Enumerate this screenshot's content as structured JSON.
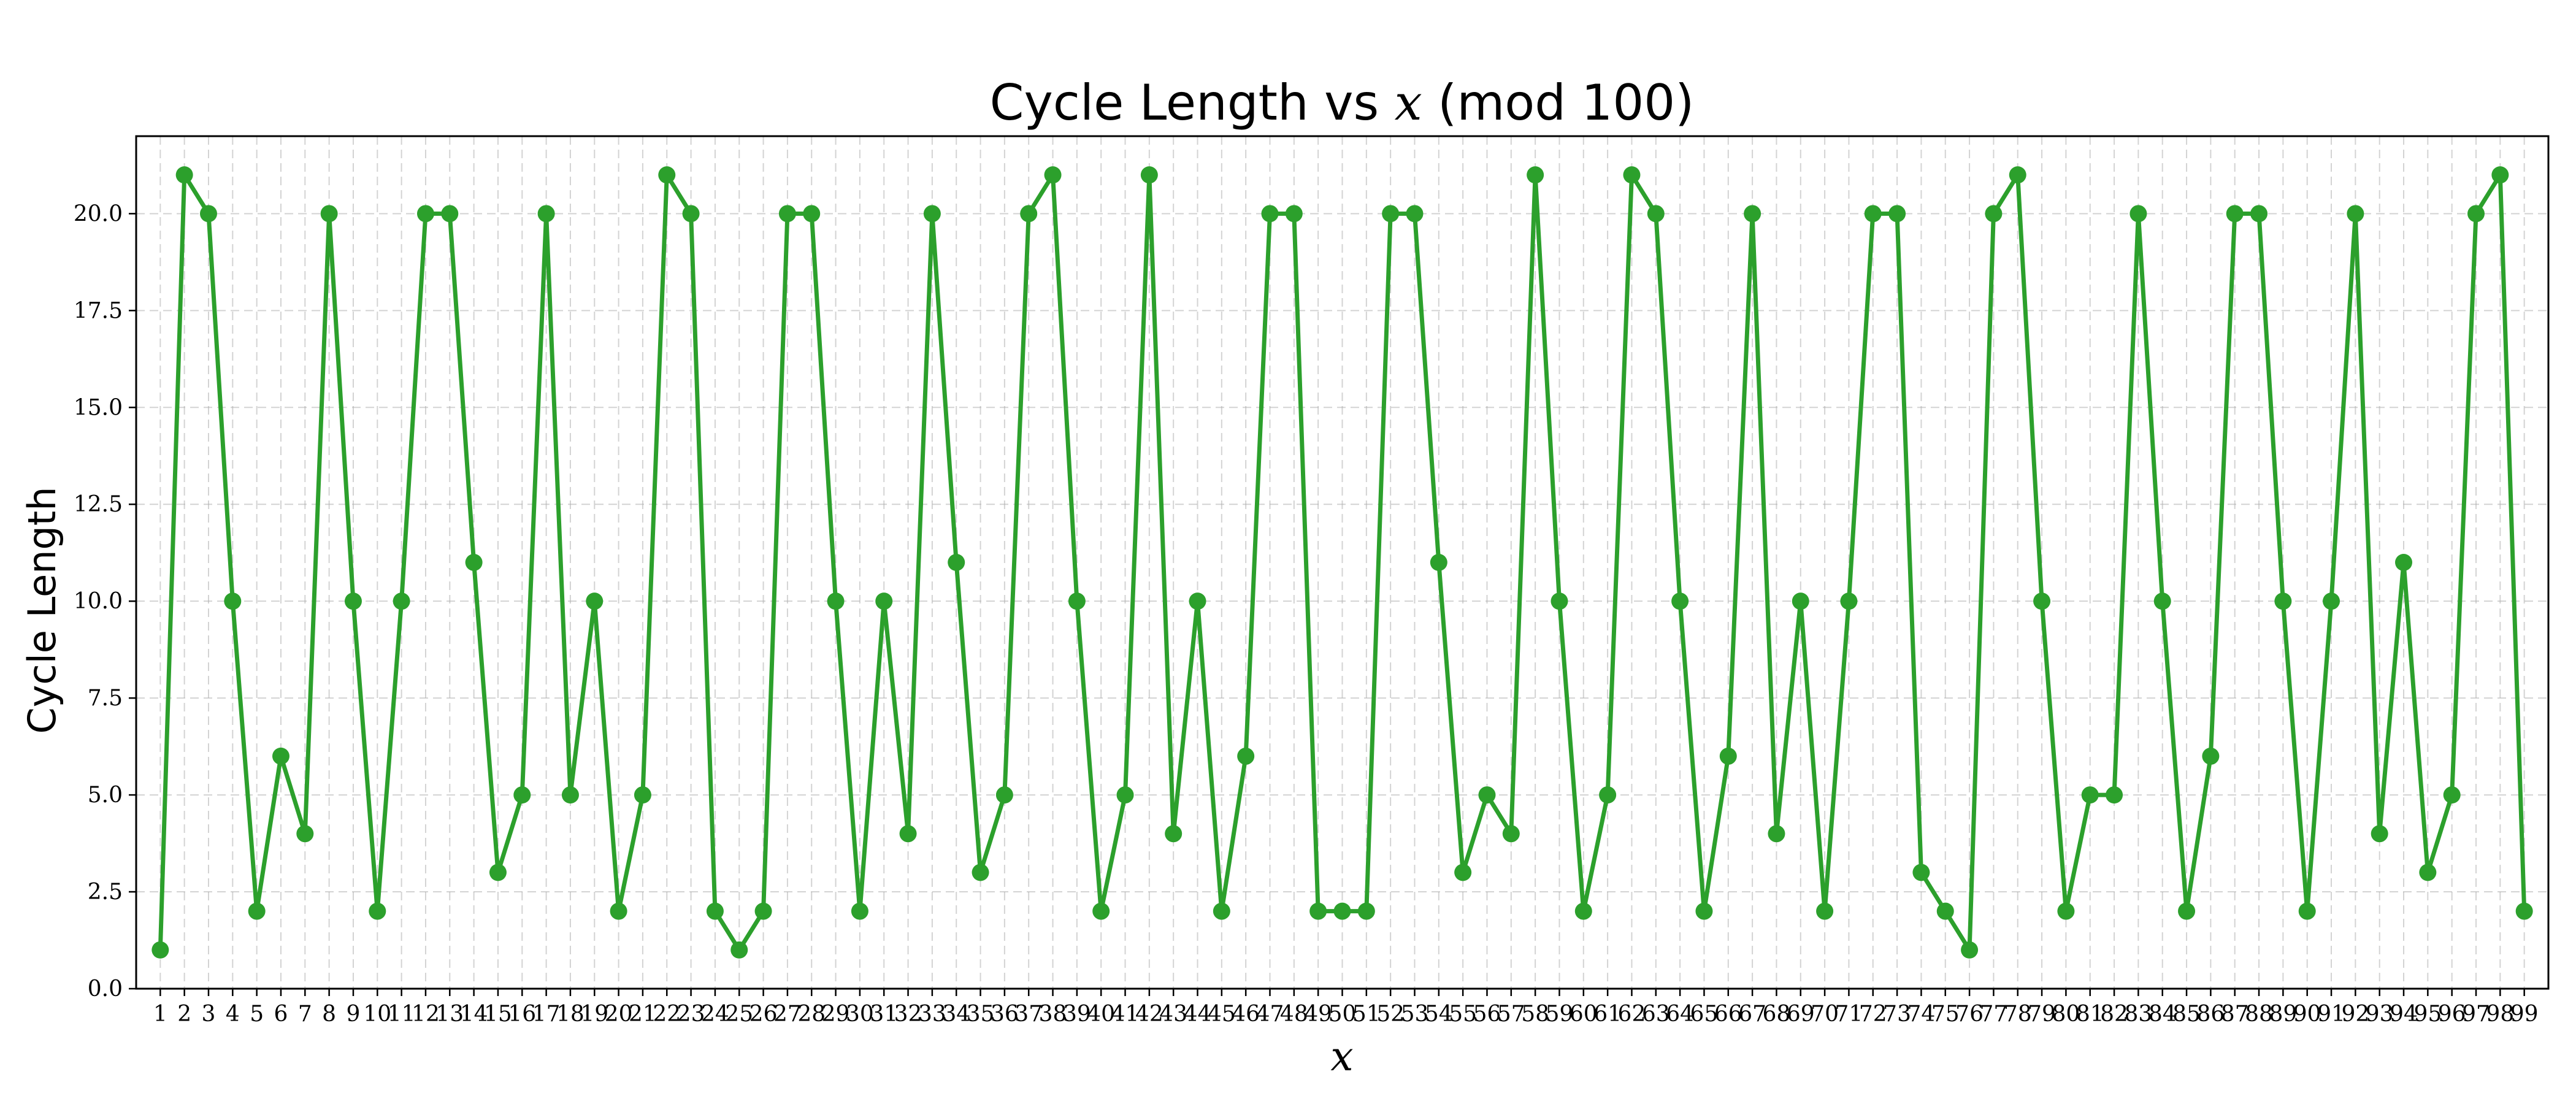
{
  "chart_data": {
    "type": "line",
    "title": "Cycle Length vs x (mod 100)",
    "title_parts": {
      "pre": "Cycle Length vs ",
      "math": "x",
      "post": " (mod 100)"
    },
    "xlabel": "x",
    "ylabel": "Cycle Length",
    "xlim": [
      0,
      100
    ],
    "ylim": [
      0,
      22
    ],
    "yticks": [
      0.0,
      2.5,
      5.0,
      7.5,
      10.0,
      12.5,
      15.0,
      17.5,
      20.0
    ],
    "ytick_labels": [
      "0.0",
      "2.5",
      "5.0",
      "7.5",
      "10.0",
      "12.5",
      "15.0",
      "17.5",
      "20.0"
    ],
    "grid": true,
    "x": [
      1,
      2,
      3,
      4,
      5,
      6,
      7,
      8,
      9,
      10,
      11,
      12,
      13,
      14,
      15,
      16,
      17,
      18,
      19,
      20,
      21,
      22,
      23,
      24,
      25,
      26,
      27,
      28,
      29,
      30,
      31,
      32,
      33,
      34,
      35,
      36,
      37,
      38,
      39,
      40,
      41,
      42,
      43,
      44,
      45,
      46,
      47,
      48,
      49,
      50,
      51,
      52,
      53,
      54,
      55,
      56,
      57,
      58,
      59,
      60,
      61,
      62,
      63,
      64,
      65,
      66,
      67,
      68,
      69,
      70,
      71,
      72,
      73,
      74,
      75,
      76,
      77,
      78,
      79,
      80,
      81,
      82,
      83,
      84,
      85,
      86,
      87,
      88,
      89,
      90,
      91,
      92,
      93,
      94,
      95,
      96,
      97,
      98,
      99
    ],
    "xtick_labels": [
      "1",
      "2",
      "3",
      "4",
      "5",
      "6",
      "7",
      "8",
      "9",
      "10",
      "11",
      "12",
      "13",
      "14",
      "15",
      "16",
      "17",
      "18",
      "19",
      "20",
      "21",
      "22",
      "23",
      "24",
      "25",
      "26",
      "27",
      "28",
      "29",
      "30",
      "31",
      "32",
      "33",
      "34",
      "35",
      "36",
      "37",
      "38",
      "39",
      "40",
      "41",
      "42",
      "43",
      "44",
      "45",
      "46",
      "47",
      "48",
      "49",
      "50",
      "51",
      "52",
      "53",
      "54",
      "55",
      "56",
      "57",
      "58",
      "59",
      "60",
      "61",
      "62",
      "63",
      "64",
      "65",
      "66",
      "67",
      "68",
      "69",
      "70",
      "71",
      "72",
      "73",
      "74",
      "75",
      "76",
      "77",
      "78",
      "79",
      "80",
      "81",
      "82",
      "83",
      "84",
      "85",
      "86",
      "87",
      "88",
      "89",
      "90",
      "91",
      "92",
      "93",
      "94",
      "95",
      "96",
      "97",
      "98",
      "99"
    ],
    "series": [
      {
        "color": "#2ca02c",
        "values": [
          1,
          21,
          20,
          10,
          2,
          6,
          4,
          20,
          10,
          2,
          10,
          20,
          20,
          11,
          3,
          5,
          20,
          5,
          10,
          2,
          5,
          21,
          20,
          2,
          1,
          2,
          20,
          20,
          10,
          2,
          10,
          4,
          20,
          11,
          3,
          5,
          20,
          21,
          10,
          2,
          5,
          21,
          4,
          10,
          2,
          6,
          20,
          20,
          2,
          2,
          2,
          20,
          20,
          11,
          3,
          5,
          4,
          21,
          10,
          2,
          5,
          21,
          20,
          10,
          2,
          6,
          20,
          4,
          10,
          2,
          10,
          20,
          20,
          3,
          2,
          1,
          20,
          21,
          10,
          2,
          5,
          5,
          20,
          10,
          2,
          6,
          20,
          20,
          10,
          2,
          10,
          20,
          4,
          11,
          3,
          5,
          20,
          21,
          2
        ]
      }
    ]
  }
}
